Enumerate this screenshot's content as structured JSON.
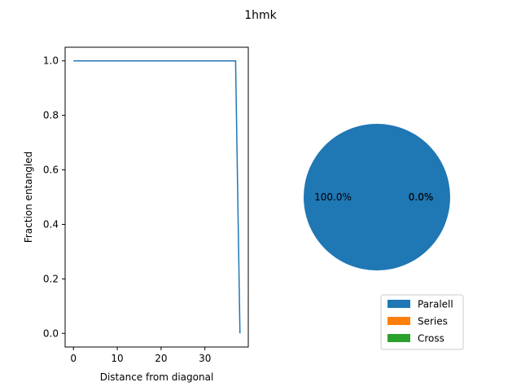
{
  "figure": {
    "title": "1hmk"
  },
  "chart_data": [
    {
      "type": "line",
      "xlabel": "Distance from diagonal",
      "ylabel": "Fraction entangled",
      "xlim": [
        -1.9,
        39.9
      ],
      "ylim": [
        -0.05,
        1.05
      ],
      "xticks": [
        0,
        10,
        20,
        30
      ],
      "yticks": [
        0.0,
        0.2,
        0.4,
        0.6,
        0.8,
        1.0
      ],
      "x": [
        0,
        37,
        38
      ],
      "y": [
        1.0,
        1.0,
        0.0
      ],
      "color": "#1f77b4",
      "grid": false
    },
    {
      "type": "pie",
      "labels": [
        "Paralell",
        "Series",
        "Cross"
      ],
      "values": [
        100.0,
        0.0,
        0.0
      ],
      "pct_labels": [
        "100.0%",
        "0.0%",
        "0.0%"
      ],
      "colors": [
        "#1f77b4",
        "#ff7f0e",
        "#2ca02c"
      ],
      "legend": "lower-right"
    }
  ]
}
